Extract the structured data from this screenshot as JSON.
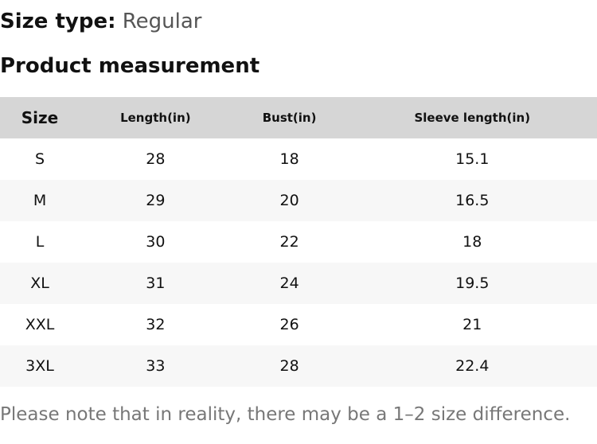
{
  "size_type_label": "Size type:",
  "size_type": "Regular",
  "heading": "Product measurement",
  "table": {
    "headers": [
      "Size",
      "Length(in)",
      "Bust(in)",
      "Sleeve length(in)"
    ],
    "rows": [
      [
        "S",
        "28",
        "18",
        "15.1"
      ],
      [
        "M",
        "29",
        "20",
        "16.5"
      ],
      [
        "L",
        "30",
        "22",
        "18"
      ],
      [
        "XL",
        "31",
        "24",
        "19.5"
      ],
      [
        "XXL",
        "32",
        "26",
        "21"
      ],
      [
        "3XL",
        "33",
        "28",
        "22.4"
      ]
    ]
  },
  "note": "Please note that in reality, there may be a 1–2 size difference."
}
